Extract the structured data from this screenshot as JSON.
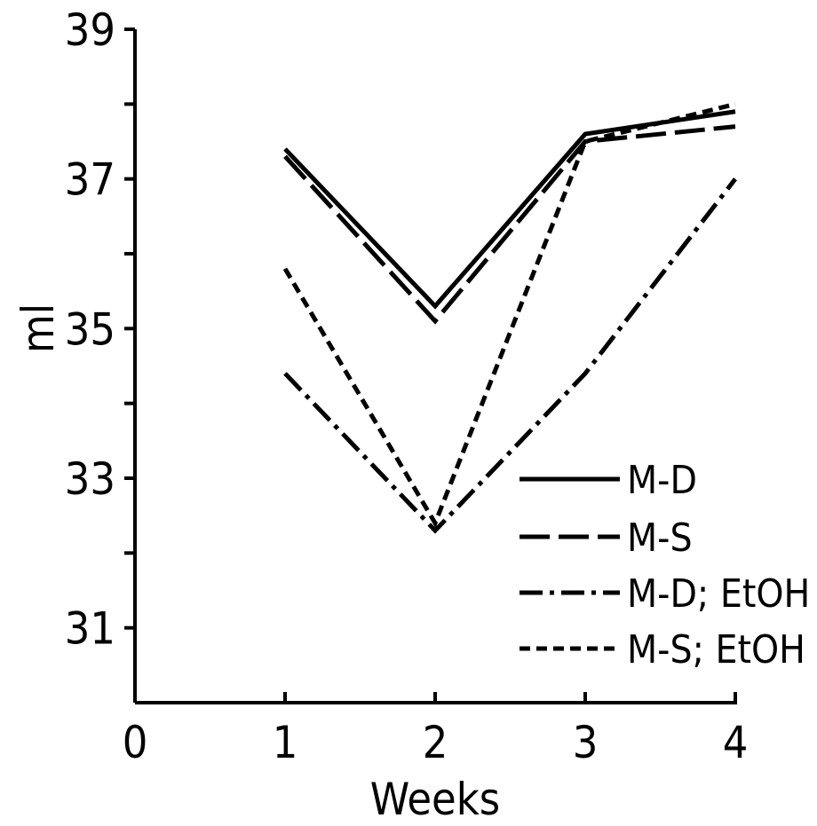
{
  "chart_data": {
    "type": "line",
    "title": "",
    "xlabel": "Weeks",
    "ylabel": "ml",
    "xlim": [
      0,
      4
    ],
    "ylim": [
      30,
      39
    ],
    "x_ticks": [
      "0",
      "1",
      "2",
      "3",
      "4"
    ],
    "y_ticks": [
      {
        "value": 31,
        "label": "31"
      },
      {
        "value": 32,
        "label": ""
      },
      {
        "value": 33,
        "label": "33"
      },
      {
        "value": 34,
        "label": ""
      },
      {
        "value": 35,
        "label": "35"
      },
      {
        "value": 36,
        "label": ""
      },
      {
        "value": 37,
        "label": "37"
      },
      {
        "value": 38,
        "label": ""
      },
      {
        "value": 39,
        "label": "39"
      }
    ],
    "grid": false,
    "legend_position": "bottom-right",
    "x": [
      1,
      2,
      3,
      4
    ],
    "series": [
      {
        "name": "M-D",
        "style": "solid",
        "values": [
          37.4,
          35.3,
          37.6,
          37.9
        ]
      },
      {
        "name": "M-S",
        "style": "long-dash",
        "values": [
          37.3,
          35.1,
          37.5,
          37.7
        ]
      },
      {
        "name": "M-D; EtOH",
        "style": "dash-dot",
        "values": [
          34.4,
          32.3,
          34.4,
          37.0
        ]
      },
      {
        "name": "M-S; EtOH",
        "style": "short-dash",
        "values": [
          35.8,
          32.4,
          37.5,
          38.0
        ]
      }
    ]
  }
}
